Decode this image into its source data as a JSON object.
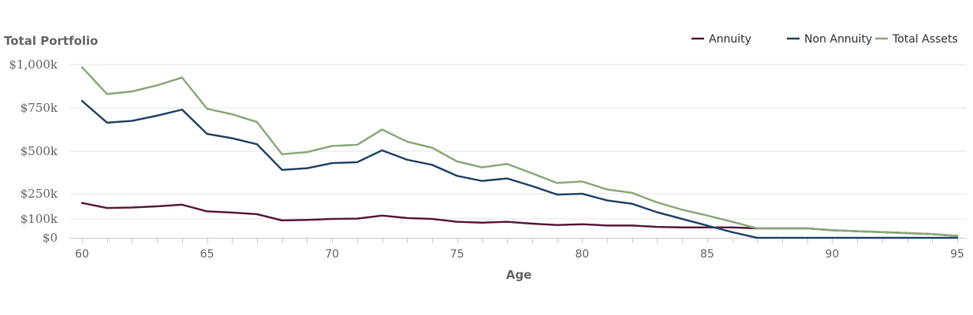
{
  "chart_data": {
    "type": "line",
    "title": "Total Portfolio",
    "xlabel": "Age",
    "ylabel": "",
    "xlim": [
      60,
      95
    ],
    "ylim": [
      0,
      1000
    ],
    "x_ticks": [
      60,
      65,
      70,
      75,
      80,
      85,
      90,
      95
    ],
    "x_tick_labels": [
      "60",
      "65",
      "70",
      "75",
      "80",
      "85",
      "90",
      "95"
    ],
    "y_ticks": [
      0,
      100,
      250,
      500,
      750,
      1000
    ],
    "y_tick_labels": [
      "$0",
      "$100k",
      "$250k",
      "$500k",
      "$750k",
      "$1,000k"
    ],
    "gridlines": true,
    "legend_position": "top-right",
    "x": [
      60,
      61,
      62,
      63,
      64,
      65,
      66,
      67,
      68,
      69,
      70,
      71,
      72,
      73,
      74,
      75,
      76,
      77,
      78,
      79,
      80,
      81,
      82,
      83,
      84,
      85,
      86,
      87,
      88,
      89,
      90,
      91,
      92,
      93,
      94,
      95
    ],
    "series": [
      {
        "name": "Annuity",
        "color": "#5c1e3c",
        "values": [
          195,
          165,
          168,
          175,
          185,
          145,
          138,
          128,
          92,
          95,
          100,
          102,
          120,
          105,
          100,
          85,
          80,
          85,
          75,
          68,
          72,
          65,
          65,
          58,
          55,
          55,
          55,
          50,
          50,
          50,
          40,
          35,
          30,
          25,
          20,
          10
        ]
      },
      {
        "name": "Non Annuity",
        "color": "#26476a",
        "values": [
          790,
          665,
          675,
          705,
          740,
          600,
          575,
          540,
          390,
          400,
          430,
          435,
          505,
          450,
          420,
          355,
          325,
          340,
          295,
          245,
          250,
          210,
          190,
          140,
          100,
          65,
          30,
          0,
          0,
          0,
          0,
          0,
          0,
          0,
          0,
          0
        ]
      },
      {
        "name": "Total Assets",
        "color": "#8aab7b",
        "values": [
          985,
          830,
          845,
          880,
          925,
          745,
          713,
          668,
          482,
          495,
          530,
          537,
          625,
          555,
          520,
          440,
          405,
          425,
          370,
          313,
          322,
          275,
          255,
          198,
          155,
          120,
          85,
          50,
          50,
          50,
          40,
          35,
          30,
          25,
          20,
          10
        ]
      }
    ]
  }
}
